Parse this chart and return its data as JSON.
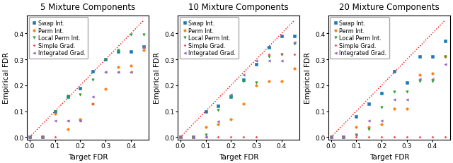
{
  "titles": [
    "5 Mixture Components",
    "10 Mixture Components",
    "20 Mixture Components"
  ],
  "xlabel": "Target FDR",
  "ylabel": "Empirical FDR",
  "xlim": [
    -0.01,
    0.47
  ],
  "ylim": [
    -0.01,
    0.47
  ],
  "series": [
    {
      "label": "Swap Int.",
      "color": "#1f77b4",
      "marker": "s",
      "ms": 2.5,
      "data": [
        [
          [
            0.0,
            0.0
          ],
          [
            0.05,
            0.0
          ],
          [
            0.1,
            0.1
          ],
          [
            0.15,
            0.155
          ],
          [
            0.2,
            0.19
          ],
          [
            0.25,
            0.255
          ],
          [
            0.3,
            0.3
          ],
          [
            0.35,
            0.33
          ],
          [
            0.4,
            0.33
          ],
          [
            0.45,
            0.35
          ]
        ],
        [
          [
            0.0,
            0.0
          ],
          [
            0.05,
            0.0
          ],
          [
            0.1,
            0.1
          ],
          [
            0.15,
            0.12
          ],
          [
            0.2,
            0.155
          ],
          [
            0.25,
            0.22
          ],
          [
            0.3,
            0.28
          ],
          [
            0.35,
            0.345
          ],
          [
            0.4,
            0.39
          ],
          [
            0.45,
            0.39
          ]
        ],
        [
          [
            0.0,
            0.0
          ],
          [
            0.05,
            0.0
          ],
          [
            0.1,
            0.08
          ],
          [
            0.15,
            0.13
          ],
          [
            0.2,
            0.17
          ],
          [
            0.25,
            0.255
          ],
          [
            0.3,
            0.21
          ],
          [
            0.35,
            0.31
          ],
          [
            0.4,
            0.31
          ],
          [
            0.45,
            0.37
          ]
        ]
      ]
    },
    {
      "label": "Perm Int.",
      "color": "#ff7f0e",
      "marker": "o",
      "ms": 2.5,
      "data": [
        [
          [
            0.0,
            0.0
          ],
          [
            0.05,
            0.0
          ],
          [
            0.1,
            0.09
          ],
          [
            0.15,
            0.03
          ],
          [
            0.2,
            0.07
          ],
          [
            0.25,
            0.13
          ],
          [
            0.3,
            0.185
          ],
          [
            0.35,
            0.27
          ],
          [
            0.4,
            0.275
          ],
          [
            0.45,
            0.335
          ]
        ],
        [
          [
            0.0,
            0.0
          ],
          [
            0.05,
            0.0
          ],
          [
            0.1,
            0.04
          ],
          [
            0.15,
            0.05
          ],
          [
            0.2,
            0.07
          ],
          [
            0.25,
            0.13
          ],
          [
            0.3,
            0.2
          ],
          [
            0.35,
            0.215
          ],
          [
            0.4,
            0.215
          ],
          [
            0.45,
            0.265
          ]
        ],
        [
          [
            0.0,
            0.0
          ],
          [
            0.05,
            0.0
          ],
          [
            0.1,
            0.04
          ],
          [
            0.15,
            0.04
          ],
          [
            0.2,
            0.05
          ],
          [
            0.25,
            0.11
          ],
          [
            0.3,
            0.11
          ],
          [
            0.35,
            0.24
          ],
          [
            0.4,
            0.245
          ],
          [
            0.45,
            0.31
          ]
        ]
      ]
    },
    {
      "label": "Local Perm Int.",
      "color": "#2ca02c",
      "marker": "v",
      "ms": 2.5,
      "data": [
        [
          [
            0.0,
            0.0
          ],
          [
            0.05,
            0.0
          ],
          [
            0.1,
            0.1
          ],
          [
            0.15,
            0.16
          ],
          [
            0.2,
            0.165
          ],
          [
            0.25,
            0.22
          ],
          [
            0.3,
            0.3
          ],
          [
            0.35,
            0.335
          ],
          [
            0.4,
            0.395
          ],
          [
            0.45,
            0.395
          ]
        ],
        [
          [
            0.0,
            0.0
          ],
          [
            0.05,
            0.0
          ],
          [
            0.1,
            0.01
          ],
          [
            0.15,
            0.105
          ],
          [
            0.2,
            0.155
          ],
          [
            0.25,
            0.215
          ],
          [
            0.3,
            0.21
          ],
          [
            0.35,
            0.31
          ],
          [
            0.4,
            0.32
          ],
          [
            0.45,
            0.36
          ]
        ],
        [
          [
            0.0,
            0.0
          ],
          [
            0.05,
            0.0
          ],
          [
            0.1,
            0.01
          ],
          [
            0.15,
            0.03
          ],
          [
            0.2,
            0.115
          ],
          [
            0.25,
            0.175
          ],
          [
            0.3,
            0.175
          ],
          [
            0.35,
            0.215
          ],
          [
            0.4,
            0.215
          ],
          [
            0.45,
            0.31
          ]
        ]
      ]
    },
    {
      "label": "Simple Grad.",
      "color": "#e35454",
      "marker": "P",
      "ms": 2.0,
      "data": [
        [
          [
            0.0,
            0.0
          ],
          [
            0.05,
            0.0
          ],
          [
            0.1,
            0.0
          ],
          [
            0.15,
            0.065
          ],
          [
            0.2,
            0.065
          ],
          [
            0.25,
            0.13
          ],
          [
            0.3,
            0.25
          ],
          [
            0.35,
            0.25
          ],
          [
            0.4,
            0.25
          ],
          [
            0.45,
            0.345
          ]
        ],
        [
          [
            0.0,
            0.0
          ],
          [
            0.05,
            0.0
          ],
          [
            0.1,
            0.0
          ],
          [
            0.15,
            0.0
          ],
          [
            0.2,
            0.0
          ],
          [
            0.25,
            0.0
          ],
          [
            0.3,
            0.0
          ],
          [
            0.35,
            0.32
          ],
          [
            0.4,
            0.32
          ],
          [
            0.45,
            0.32
          ]
        ],
        [
          [
            0.0,
            0.0
          ],
          [
            0.05,
            0.0
          ],
          [
            0.1,
            0.0
          ],
          [
            0.15,
            0.0
          ],
          [
            0.2,
            0.0
          ],
          [
            0.25,
            0.0
          ],
          [
            0.3,
            0.0
          ],
          [
            0.35,
            0.0
          ],
          [
            0.4,
            0.0
          ],
          [
            0.45,
            0.0
          ]
        ]
      ]
    },
    {
      "label": "Integrated Grad.",
      "color": "#9467bd",
      "marker": "<",
      "ms": 2.5,
      "data": [
        [
          [
            0.0,
            0.0
          ],
          [
            0.05,
            0.0
          ],
          [
            0.1,
            0.065
          ],
          [
            0.15,
            0.065
          ],
          [
            0.2,
            0.065
          ],
          [
            0.25,
            0.155
          ],
          [
            0.3,
            0.25
          ],
          [
            0.35,
            0.25
          ],
          [
            0.4,
            0.25
          ],
          [
            0.45,
            0.345
          ]
        ],
        [
          [
            0.0,
            0.0
          ],
          [
            0.05,
            0.0
          ],
          [
            0.1,
            0.0
          ],
          [
            0.15,
            0.06
          ],
          [
            0.2,
            0.165
          ],
          [
            0.25,
            0.24
          ],
          [
            0.3,
            0.295
          ],
          [
            0.35,
            0.295
          ],
          [
            0.4,
            0.295
          ],
          [
            0.45,
            0.365
          ]
        ],
        [
          [
            0.0,
            0.0
          ],
          [
            0.05,
            0.0
          ],
          [
            0.1,
            0.01
          ],
          [
            0.15,
            0.065
          ],
          [
            0.2,
            0.065
          ],
          [
            0.25,
            0.145
          ],
          [
            0.3,
            0.145
          ],
          [
            0.35,
            0.225
          ],
          [
            0.4,
            0.225
          ],
          [
            0.45,
            0.28
          ]
        ]
      ]
    }
  ],
  "figsize": [
    6.4,
    2.32
  ],
  "dpi": 100,
  "legend_fontsize": 5.8,
  "tick_fontsize": 6.5,
  "label_fontsize": 7.5,
  "title_fontsize": 8.5
}
